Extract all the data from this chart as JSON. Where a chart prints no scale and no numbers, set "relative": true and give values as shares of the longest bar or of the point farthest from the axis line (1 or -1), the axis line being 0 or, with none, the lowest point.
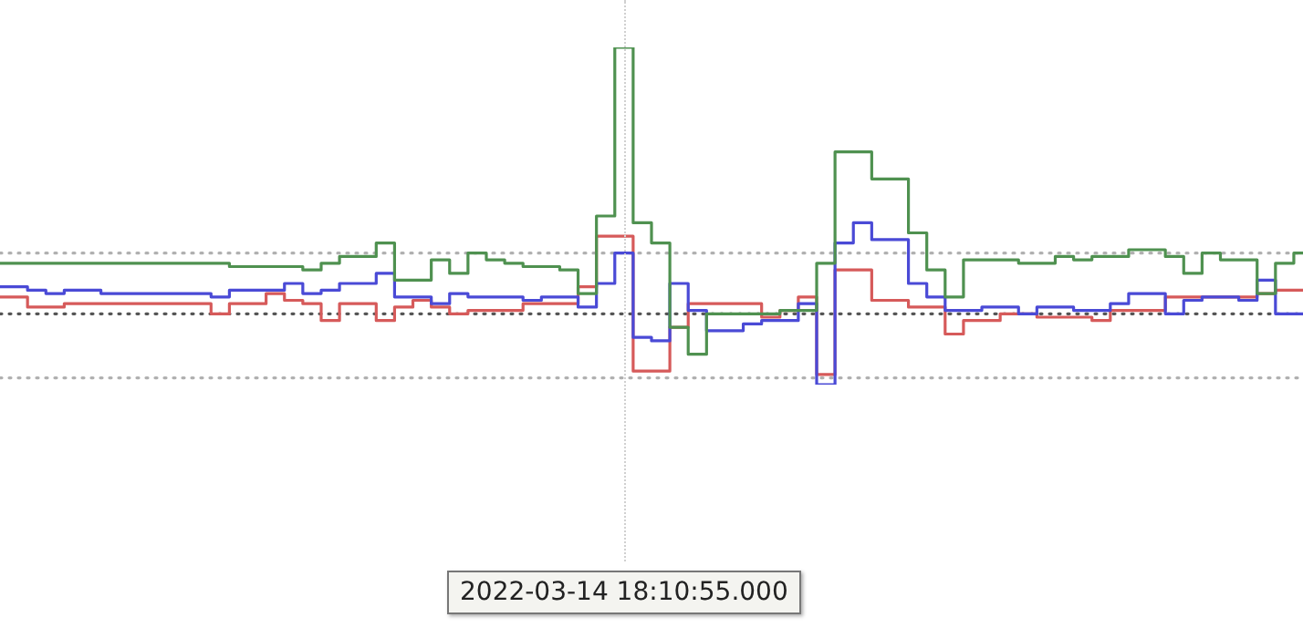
{
  "chart_data": {
    "type": "step",
    "relative": true,
    "categories": [
      null,
      null,
      null,
      null,
      null,
      null,
      null,
      null,
      null,
      null,
      null,
      null,
      null,
      null,
      null,
      null,
      null,
      null,
      null,
      null,
      null,
      null,
      null,
      null,
      null,
      null,
      null,
      null,
      null,
      null,
      null,
      null,
      null,
      null,
      null,
      null,
      null,
      null,
      null,
      null,
      null,
      null,
      null,
      null,
      null,
      null,
      null,
      null,
      null,
      null,
      null,
      null,
      null,
      null,
      null,
      null,
      null,
      null,
      null,
      null,
      null,
      null,
      null,
      null,
      null,
      null,
      null,
      null,
      null,
      null,
      null,
      null
    ],
    "series": [
      {
        "color": "#4f9150",
        "values": [
          0.36,
          0.36,
          0.36,
          0.36,
          0.36,
          0.36,
          0.36,
          0.36,
          0.36,
          0.36,
          0.36,
          0.36,
          0.36,
          0.35,
          0.35,
          0.35,
          0.35,
          0.34,
          0.36,
          0.38,
          0.38,
          0.42,
          0.31,
          0.31,
          0.37,
          0.33,
          0.39,
          0.37,
          0.36,
          0.35,
          0.35,
          0.34,
          0.27,
          0.5,
          1.0,
          0.48,
          0.42,
          0.17,
          0.09,
          0.21,
          0.21,
          0.21,
          0.21,
          0.22,
          0.22,
          0.36,
          0.69,
          0.69,
          0.61,
          0.61,
          0.45,
          0.34,
          0.26,
          0.37,
          0.37,
          0.37,
          0.36,
          0.36,
          0.38,
          0.37,
          0.38,
          0.38,
          0.4,
          0.4,
          0.38,
          0.33,
          0.39,
          0.37,
          0.37,
          0.27,
          0.36,
          0.39
        ]
      },
      {
        "color": "#4a4ad6",
        "values": [
          0.29,
          0.29,
          0.28,
          0.27,
          0.28,
          0.28,
          0.27,
          0.27,
          0.27,
          0.27,
          0.27,
          0.27,
          0.26,
          0.28,
          0.28,
          0.28,
          0.3,
          0.27,
          0.28,
          0.3,
          0.3,
          0.33,
          0.26,
          0.26,
          0.24,
          0.27,
          0.26,
          0.26,
          0.26,
          0.25,
          0.26,
          0.26,
          0.23,
          0.3,
          0.39,
          0.14,
          0.13,
          0.3,
          0.22,
          0.16,
          0.16,
          0.18,
          0.19,
          0.19,
          0.24,
          0,
          0.42,
          0.48,
          0.43,
          0.43,
          0.3,
          0.26,
          0.22,
          0.22,
          0.23,
          0.23,
          0.21,
          0.23,
          0.23,
          0.22,
          0.22,
          0.24,
          0.27,
          0.27,
          0.21,
          0.25,
          0.26,
          0.26,
          0.25,
          0.31,
          0.21,
          0.21
        ]
      },
      {
        "color": "#d65a5a",
        "values": [
          0.26,
          0.26,
          0.23,
          0.23,
          0.24,
          0.24,
          0.24,
          0.24,
          0.24,
          0.24,
          0.24,
          0.24,
          0.21,
          0.24,
          0.24,
          0.27,
          0.25,
          0.24,
          0.19,
          0.24,
          0.24,
          0.19,
          0.23,
          0.25,
          0.23,
          0.21,
          0.22,
          0.22,
          0.22,
          0.24,
          0.24,
          0.24,
          0.29,
          0.44,
          0.44,
          0.04,
          0.04,
          0.17,
          0.24,
          0.24,
          0.24,
          0.24,
          0.2,
          0.22,
          0.26,
          0.03,
          0.34,
          0.34,
          0.25,
          0.25,
          0.23,
          0.23,
          0.15,
          0.19,
          0.19,
          0.21,
          0.21,
          0.2,
          0.2,
          0.2,
          0.19,
          0.22,
          0.22,
          0.22,
          0.26,
          0.26,
          0.26,
          0.26,
          0.26,
          0.27,
          0.28,
          0.28
        ]
      }
    ],
    "ref_lines": [
      {
        "axis": "y",
        "value": 0.39,
        "color": "#b0b0b0",
        "line_style": "dotted"
      },
      {
        "axis": "y",
        "value": 0.21,
        "color": "#555555",
        "line_style": "dotted"
      },
      {
        "axis": "y",
        "value": 0.02,
        "color": "#b0b0b0",
        "line_style": "dotted"
      }
    ],
    "annotations": [
      "2022-03-14 18:10:55.000"
    ],
    "legend": false,
    "marker": "none",
    "line_style": "solid"
  }
}
